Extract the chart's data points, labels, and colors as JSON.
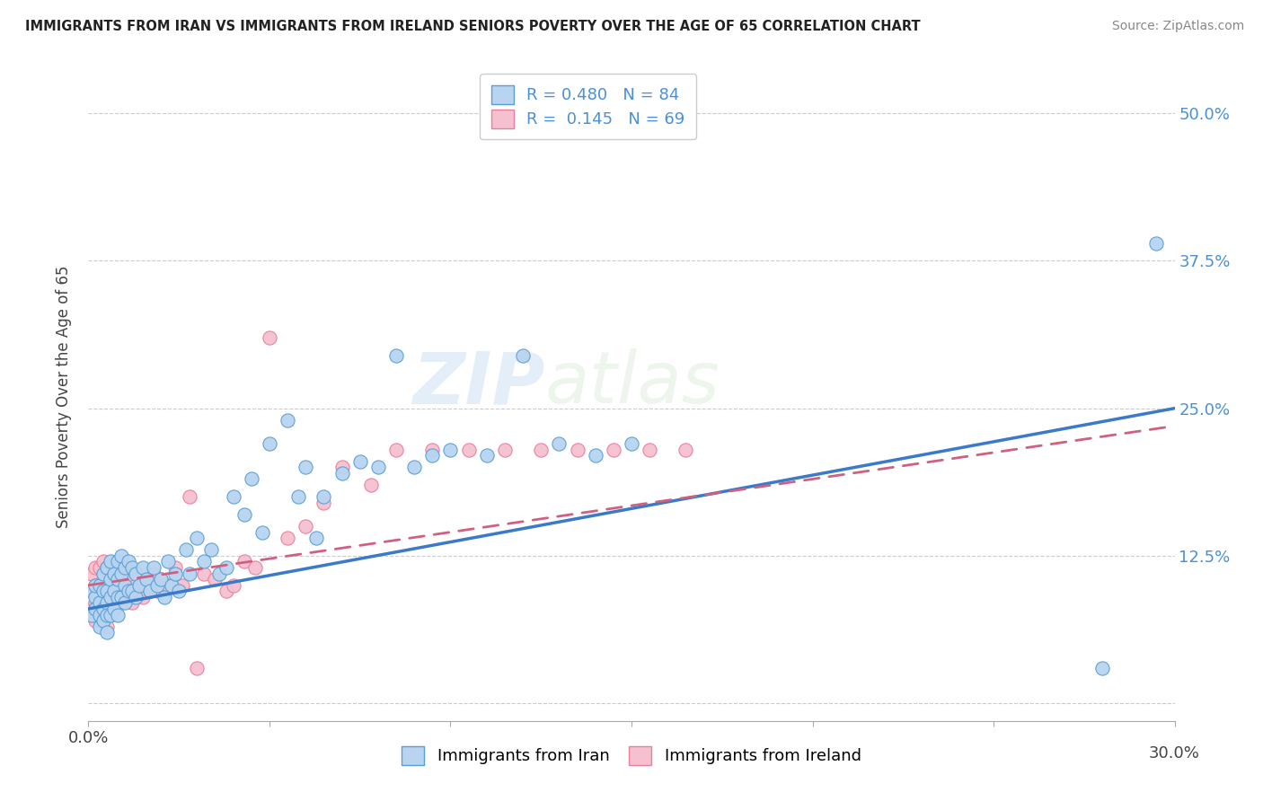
{
  "title": "IMMIGRANTS FROM IRAN VS IMMIGRANTS FROM IRELAND SENIORS POVERTY OVER THE AGE OF 65 CORRELATION CHART",
  "source": "Source: ZipAtlas.com",
  "ylabel": "Seniors Poverty Over the Age of 65",
  "xlim": [
    0.0,
    0.3
  ],
  "ylim": [
    -0.015,
    0.535
  ],
  "iran_R": 0.48,
  "iran_N": 84,
  "ireland_R": 0.145,
  "ireland_N": 69,
  "iran_color": "#b8d4f0",
  "iran_color_dark": "#5a9fd4",
  "ireland_color": "#f5c0d0",
  "ireland_color_dark": "#e8809a",
  "trendline_iran_color": "#3a7ac8",
  "trendline_ireland_color": "#d06080",
  "background_color": "#ffffff",
  "watermark": "ZIPatlas",
  "legend_iran_label": "Immigrants from Iran",
  "legend_ireland_label": "Immigrants from Ireland",
  "iran_x": [
    0.001,
    0.001,
    0.002,
    0.002,
    0.002,
    0.003,
    0.003,
    0.003,
    0.003,
    0.004,
    0.004,
    0.004,
    0.004,
    0.005,
    0.005,
    0.005,
    0.005,
    0.005,
    0.006,
    0.006,
    0.006,
    0.006,
    0.007,
    0.007,
    0.007,
    0.008,
    0.008,
    0.008,
    0.008,
    0.009,
    0.009,
    0.009,
    0.01,
    0.01,
    0.01,
    0.011,
    0.011,
    0.012,
    0.012,
    0.013,
    0.013,
    0.014,
    0.015,
    0.016,
    0.017,
    0.018,
    0.019,
    0.02,
    0.021,
    0.022,
    0.023,
    0.024,
    0.025,
    0.027,
    0.028,
    0.03,
    0.032,
    0.034,
    0.036,
    0.038,
    0.04,
    0.043,
    0.045,
    0.048,
    0.05,
    0.055,
    0.058,
    0.06,
    0.063,
    0.065,
    0.07,
    0.075,
    0.08,
    0.085,
    0.09,
    0.095,
    0.1,
    0.11,
    0.12,
    0.13,
    0.14,
    0.15,
    0.28,
    0.295
  ],
  "iran_y": [
    0.095,
    0.075,
    0.09,
    0.1,
    0.08,
    0.1,
    0.085,
    0.075,
    0.065,
    0.11,
    0.095,
    0.08,
    0.07,
    0.115,
    0.095,
    0.085,
    0.075,
    0.06,
    0.12,
    0.105,
    0.09,
    0.075,
    0.11,
    0.095,
    0.08,
    0.12,
    0.105,
    0.09,
    0.075,
    0.125,
    0.11,
    0.09,
    0.115,
    0.1,
    0.085,
    0.12,
    0.095,
    0.115,
    0.095,
    0.11,
    0.09,
    0.1,
    0.115,
    0.105,
    0.095,
    0.115,
    0.1,
    0.105,
    0.09,
    0.12,
    0.1,
    0.11,
    0.095,
    0.13,
    0.11,
    0.14,
    0.12,
    0.13,
    0.11,
    0.115,
    0.175,
    0.16,
    0.19,
    0.145,
    0.22,
    0.24,
    0.175,
    0.2,
    0.14,
    0.175,
    0.195,
    0.205,
    0.2,
    0.295,
    0.2,
    0.21,
    0.215,
    0.21,
    0.295,
    0.22,
    0.21,
    0.22,
    0.03,
    0.39
  ],
  "ireland_x": [
    0.001,
    0.001,
    0.001,
    0.002,
    0.002,
    0.002,
    0.002,
    0.003,
    0.003,
    0.003,
    0.003,
    0.004,
    0.004,
    0.004,
    0.004,
    0.005,
    0.005,
    0.005,
    0.005,
    0.006,
    0.006,
    0.006,
    0.007,
    0.007,
    0.007,
    0.008,
    0.008,
    0.009,
    0.009,
    0.01,
    0.01,
    0.011,
    0.011,
    0.012,
    0.012,
    0.013,
    0.014,
    0.015,
    0.016,
    0.017,
    0.018,
    0.019,
    0.02,
    0.022,
    0.024,
    0.026,
    0.028,
    0.03,
    0.032,
    0.035,
    0.038,
    0.04,
    0.043,
    0.046,
    0.05,
    0.055,
    0.06,
    0.065,
    0.07,
    0.078,
    0.085,
    0.095,
    0.105,
    0.115,
    0.125,
    0.135,
    0.145,
    0.155,
    0.165
  ],
  "ireland_y": [
    0.11,
    0.095,
    0.08,
    0.115,
    0.1,
    0.085,
    0.07,
    0.115,
    0.1,
    0.085,
    0.075,
    0.12,
    0.105,
    0.09,
    0.075,
    0.115,
    0.1,
    0.085,
    0.065,
    0.115,
    0.1,
    0.085,
    0.11,
    0.095,
    0.08,
    0.12,
    0.095,
    0.115,
    0.085,
    0.11,
    0.09,
    0.115,
    0.09,
    0.105,
    0.085,
    0.1,
    0.095,
    0.09,
    0.105,
    0.095,
    0.11,
    0.095,
    0.105,
    0.1,
    0.115,
    0.1,
    0.175,
    0.03,
    0.11,
    0.105,
    0.095,
    0.1,
    0.12,
    0.115,
    0.31,
    0.14,
    0.15,
    0.17,
    0.2,
    0.185,
    0.215,
    0.215,
    0.215,
    0.215,
    0.215,
    0.215,
    0.215,
    0.215,
    0.215
  ],
  "iran_trendline_x0": 0.0,
  "iran_trendline_y0": 0.08,
  "iran_trendline_x1": 0.3,
  "iran_trendline_y1": 0.25,
  "ireland_trendline_x0": 0.0,
  "ireland_trendline_y0": 0.1,
  "ireland_trendline_x1": 0.3,
  "ireland_trendline_y1": 0.235
}
